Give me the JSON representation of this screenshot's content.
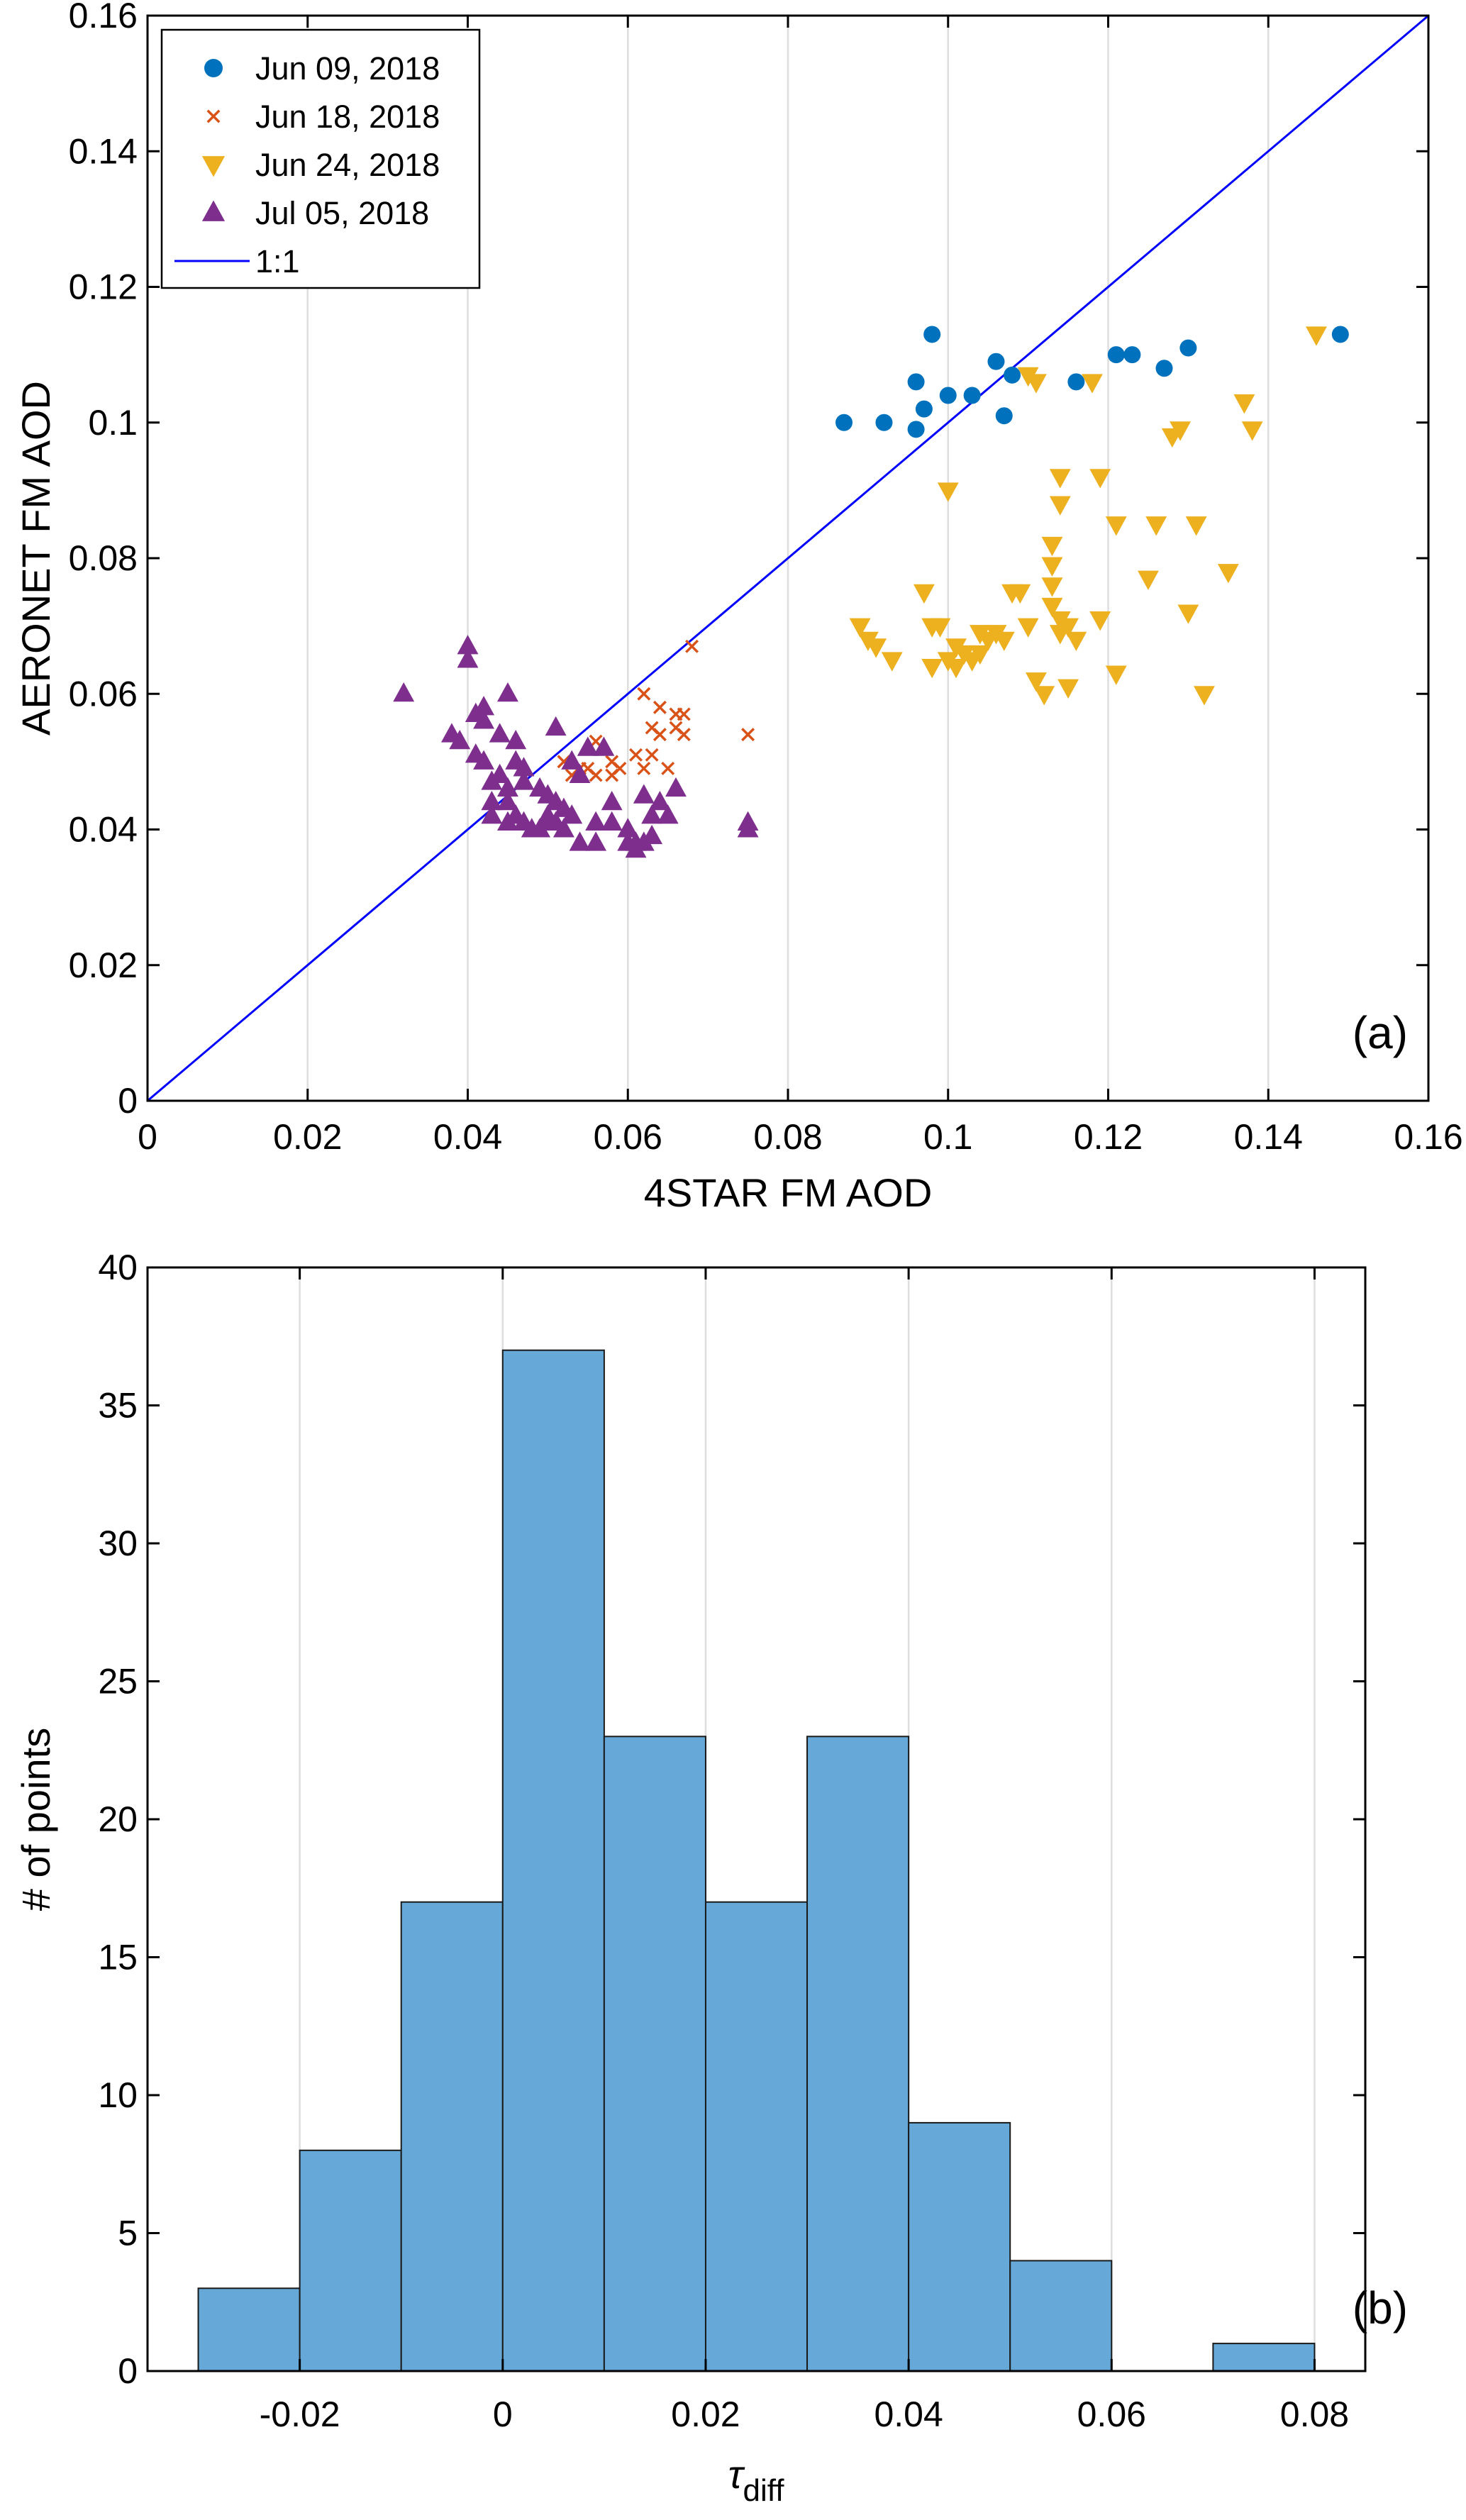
{
  "chart_data": [
    {
      "type": "scatter",
      "panel_label": "(a)",
      "xlabel": "4STAR FM AOD",
      "ylabel": "AERONET FM AOD",
      "xlim": [
        0,
        0.16
      ],
      "ylim": [
        0,
        0.16
      ],
      "x_ticks": [
        0,
        0.02,
        0.04,
        0.06,
        0.08,
        0.1,
        0.12,
        0.14,
        0.16
      ],
      "x_tick_labels": [
        "0",
        "0.02",
        "0.04",
        "0.06",
        "0.08",
        "0.1",
        "0.12",
        "0.14",
        "0.16"
      ],
      "y_ticks": [
        0,
        0.02,
        0.04,
        0.06,
        0.08,
        0.1,
        0.12,
        0.14,
        0.16
      ],
      "y_tick_labels": [
        "0",
        "0.02",
        "0.04",
        "0.06",
        "0.08",
        "0.1",
        "0.12",
        "0.14",
        "0.16"
      ],
      "grid": "vertical",
      "legend_position": "top-left",
      "series": [
        {
          "name": "Jun 09, 2018",
          "marker": "circle",
          "color": "#0072BD",
          "points": [
            [
              0.087,
              0.1
            ],
            [
              0.092,
              0.1
            ],
            [
              0.096,
              0.099
            ],
            [
              0.096,
              0.106
            ],
            [
              0.097,
              0.102
            ],
            [
              0.098,
              0.113
            ],
            [
              0.1,
              0.104
            ],
            [
              0.103,
              0.104
            ],
            [
              0.106,
              0.109
            ],
            [
              0.107,
              0.101
            ],
            [
              0.108,
              0.107
            ],
            [
              0.116,
              0.106
            ],
            [
              0.121,
              0.11
            ],
            [
              0.123,
              0.11
            ],
            [
              0.127,
              0.108
            ],
            [
              0.13,
              0.111
            ],
            [
              0.149,
              0.113
            ]
          ]
        },
        {
          "name": "Jun 18, 2018",
          "marker": "x",
          "color": "#D95319",
          "points": [
            [
              0.052,
              0.05
            ],
            [
              0.053,
              0.048
            ],
            [
              0.054,
              0.049
            ],
            [
              0.055,
              0.049
            ],
            [
              0.056,
              0.053
            ],
            [
              0.056,
              0.048
            ],
            [
              0.058,
              0.05
            ],
            [
              0.058,
              0.048
            ],
            [
              0.059,
              0.049
            ],
            [
              0.061,
              0.051
            ],
            [
              0.062,
              0.049
            ],
            [
              0.062,
              0.06
            ],
            [
              0.063,
              0.051
            ],
            [
              0.063,
              0.055
            ],
            [
              0.064,
              0.054
            ],
            [
              0.064,
              0.058
            ],
            [
              0.065,
              0.049
            ],
            [
              0.066,
              0.055
            ],
            [
              0.066,
              0.057
            ],
            [
              0.067,
              0.054
            ],
            [
              0.067,
              0.057
            ],
            [
              0.068,
              0.067
            ],
            [
              0.075,
              0.054
            ]
          ]
        },
        {
          "name": "Jun 24, 2018",
          "marker": "triangle-down",
          "color": "#EDB120",
          "points": [
            [
              0.089,
              0.07
            ],
            [
              0.09,
              0.068
            ],
            [
              0.091,
              0.067
            ],
            [
              0.093,
              0.065
            ],
            [
              0.097,
              0.075
            ],
            [
              0.098,
              0.07
            ],
            [
              0.098,
              0.064
            ],
            [
              0.099,
              0.07
            ],
            [
              0.1,
              0.065
            ],
            [
              0.1,
              0.09
            ],
            [
              0.101,
              0.067
            ],
            [
              0.101,
              0.064
            ],
            [
              0.102,
              0.066
            ],
            [
              0.103,
              0.065
            ],
            [
              0.104,
              0.066
            ],
            [
              0.104,
              0.069
            ],
            [
              0.105,
              0.068
            ],
            [
              0.106,
              0.069
            ],
            [
              0.107,
              0.068
            ],
            [
              0.108,
              0.075
            ],
            [
              0.109,
              0.075
            ],
            [
              0.11,
              0.07
            ],
            [
              0.11,
              0.107
            ],
            [
              0.111,
              0.106
            ],
            [
              0.111,
              0.062
            ],
            [
              0.112,
              0.06
            ],
            [
              0.113,
              0.073
            ],
            [
              0.113,
              0.082
            ],
            [
              0.113,
              0.079
            ],
            [
              0.113,
              0.076
            ],
            [
              0.114,
              0.092
            ],
            [
              0.114,
              0.088
            ],
            [
              0.114,
              0.071
            ],
            [
              0.114,
              0.069
            ],
            [
              0.115,
              0.061
            ],
            [
              0.115,
              0.07
            ],
            [
              0.116,
              0.068
            ],
            [
              0.118,
              0.106
            ],
            [
              0.119,
              0.071
            ],
            [
              0.119,
              0.092
            ],
            [
              0.121,
              0.085
            ],
            [
              0.121,
              0.063
            ],
            [
              0.125,
              0.077
            ],
            [
              0.126,
              0.085
            ],
            [
              0.128,
              0.098
            ],
            [
              0.129,
              0.099
            ],
            [
              0.13,
              0.072
            ],
            [
              0.131,
              0.085
            ],
            [
              0.132,
              0.06
            ],
            [
              0.135,
              0.078
            ],
            [
              0.137,
              0.103
            ],
            [
              0.138,
              0.099
            ],
            [
              0.146,
              0.113
            ]
          ]
        },
        {
          "name": "Jul 05, 2018",
          "marker": "triangle-up",
          "color": "#7E2F8E",
          "points": [
            [
              0.032,
              0.06
            ],
            [
              0.038,
              0.054
            ],
            [
              0.039,
              0.053
            ],
            [
              0.04,
              0.067
            ],
            [
              0.04,
              0.065
            ],
            [
              0.041,
              0.057
            ],
            [
              0.041,
              0.051
            ],
            [
              0.042,
              0.058
            ],
            [
              0.042,
              0.056
            ],
            [
              0.042,
              0.05
            ],
            [
              0.043,
              0.047
            ],
            [
              0.043,
              0.044
            ],
            [
              0.043,
              0.042
            ],
            [
              0.044,
              0.054
            ],
            [
              0.044,
              0.048
            ],
            [
              0.045,
              0.046
            ],
            [
              0.045,
              0.044
            ],
            [
              0.045,
              0.041
            ],
            [
              0.045,
              0.06
            ],
            [
              0.046,
              0.042
            ],
            [
              0.046,
              0.053
            ],
            [
              0.046,
              0.05
            ],
            [
              0.047,
              0.049
            ],
            [
              0.047,
              0.041
            ],
            [
              0.047,
              0.047
            ],
            [
              0.048,
              0.04
            ],
            [
              0.049,
              0.04
            ],
            [
              0.049,
              0.046
            ],
            [
              0.05,
              0.045
            ],
            [
              0.05,
              0.042
            ],
            [
              0.05,
              0.041
            ],
            [
              0.051,
              0.055
            ],
            [
              0.051,
              0.044
            ],
            [
              0.051,
              0.041
            ],
            [
              0.052,
              0.043
            ],
            [
              0.052,
              0.04
            ],
            [
              0.053,
              0.042
            ],
            [
              0.053,
              0.05
            ],
            [
              0.054,
              0.048
            ],
            [
              0.054,
              0.038
            ],
            [
              0.055,
              0.052
            ],
            [
              0.056,
              0.041
            ],
            [
              0.056,
              0.038
            ],
            [
              0.057,
              0.052
            ],
            [
              0.058,
              0.044
            ],
            [
              0.058,
              0.041
            ],
            [
              0.06,
              0.04
            ],
            [
              0.06,
              0.038
            ],
            [
              0.061,
              0.038
            ],
            [
              0.061,
              0.037
            ],
            [
              0.062,
              0.045
            ],
            [
              0.062,
              0.038
            ],
            [
              0.063,
              0.039
            ],
            [
              0.063,
              0.042
            ],
            [
              0.064,
              0.044
            ],
            [
              0.065,
              0.042
            ],
            [
              0.066,
              0.046
            ],
            [
              0.075,
              0.041
            ],
            [
              0.075,
              0.04
            ]
          ]
        }
      ],
      "reference_line": {
        "name": "1:1",
        "color": "#0000FF",
        "from": [
          0,
          0
        ],
        "to": [
          0.16,
          0.16
        ]
      }
    },
    {
      "type": "bar",
      "subtype": "histogram",
      "panel_label": "(b)",
      "xlabel": "τ",
      "xlabel_subscript": "diff",
      "ylabel": "# of points",
      "xlim": [
        -0.035,
        0.085
      ],
      "ylim": [
        0,
        40
      ],
      "bar_color": "#66A9D8",
      "x_ticks": [
        -0.02,
        0,
        0.02,
        0.04,
        0.06,
        0.08
      ],
      "x_tick_labels": [
        "-0.02",
        "0",
        "0.02",
        "0.04",
        "0.06",
        "0.08"
      ],
      "y_ticks": [
        0,
        5,
        10,
        15,
        20,
        25,
        30,
        35,
        40
      ],
      "y_tick_labels": [
        "0",
        "5",
        "10",
        "15",
        "20",
        "25",
        "30",
        "35",
        "40"
      ],
      "grid": "vertical",
      "bin_edges": [
        -0.03,
        -0.02,
        -0.01,
        0,
        0.01,
        0.02,
        0.03,
        0.04,
        0.05,
        0.06,
        0.07,
        0.08
      ],
      "values": [
        3,
        8,
        17,
        37,
        23,
        17,
        23,
        9,
        4,
        0,
        1
      ]
    }
  ]
}
